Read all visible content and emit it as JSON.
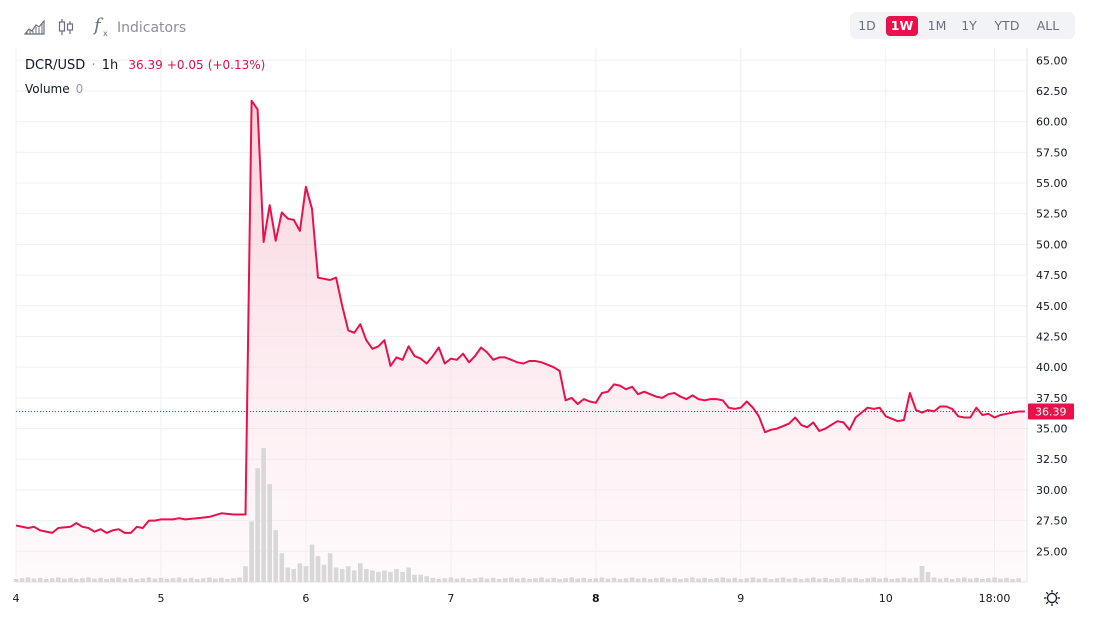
{
  "toolbar": {
    "chart_type_icon": "area-chart-icon",
    "candle_icon": "candlestick-icon",
    "fx_icon": "function-fx-icon",
    "indicators_label": "Indicators",
    "ranges": [
      "1D",
      "1W",
      "1M",
      "1Y",
      "YTD",
      "ALL"
    ],
    "active_range": "1W",
    "settings_icon": "gear-icon"
  },
  "legend": {
    "symbol": "DCR/USD",
    "interval": "1h",
    "price": "36.39",
    "change": "+0.05",
    "change_pct": "(+0.13%)",
    "volume_label": "Volume",
    "volume_value": "0"
  },
  "colors": {
    "line": "#e8114b",
    "area_top": "#f7c9d6",
    "volume": "#d8d8d8",
    "grid": "#eef0f3",
    "accent": "#e8114b"
  },
  "chart_data": {
    "type": "area",
    "title": "DCR/USD",
    "ylim": [
      22.5,
      66
    ],
    "y_ticks": [
      25.0,
      27.5,
      30.0,
      32.5,
      35.0,
      37.5,
      40.0,
      42.5,
      45.0,
      47.5,
      50.0,
      52.5,
      55.0,
      57.5,
      60.0,
      62.5,
      65.0
    ],
    "x_ticks": [
      {
        "label": "4",
        "t": 0
      },
      {
        "label": "5",
        "t": 24
      },
      {
        "label": "6",
        "t": 48
      },
      {
        "label": "7",
        "t": 72
      },
      {
        "label": "8",
        "t": 96
      },
      {
        "label": "9",
        "t": 120
      },
      {
        "label": "10",
        "t": 144
      },
      {
        "label": "18:00",
        "t": 162
      }
    ],
    "x_bold": [
      "8"
    ],
    "t_max": 167,
    "last_price": 36.39,
    "series": [
      {
        "values": [
          [
            0,
            27.1
          ],
          [
            2,
            26.9
          ],
          [
            3,
            27.0
          ],
          [
            4,
            26.7
          ],
          [
            6,
            26.5
          ],
          [
            7,
            26.9
          ],
          [
            9,
            27.0
          ],
          [
            10,
            27.3
          ],
          [
            11,
            27.0
          ],
          [
            12,
            26.9
          ],
          [
            13,
            26.6
          ],
          [
            14,
            26.8
          ],
          [
            15,
            26.5
          ],
          [
            16,
            26.7
          ],
          [
            17,
            26.8
          ],
          [
            18,
            26.5
          ],
          [
            19,
            26.5
          ],
          [
            20,
            27.0
          ],
          [
            21,
            26.9
          ],
          [
            22,
            27.5
          ],
          [
            23,
            27.5
          ],
          [
            24,
            27.6
          ],
          [
            26,
            27.6
          ],
          [
            27,
            27.7
          ],
          [
            28,
            27.6
          ],
          [
            30,
            27.7
          ],
          [
            32,
            27.8
          ],
          [
            34,
            28.1
          ],
          [
            36,
            28.0
          ],
          [
            38,
            28.0
          ],
          [
            39,
            61.7
          ],
          [
            40,
            61.0
          ],
          [
            41,
            50.2
          ],
          [
            42,
            53.2
          ],
          [
            43,
            50.3
          ],
          [
            44,
            52.6
          ],
          [
            45,
            52.1
          ],
          [
            46,
            52.0
          ],
          [
            47,
            51.1
          ],
          [
            48,
            54.7
          ],
          [
            49,
            52.9
          ],
          [
            50,
            47.3
          ],
          [
            51,
            47.2
          ],
          [
            52,
            47.1
          ],
          [
            53,
            47.3
          ],
          [
            54,
            45.0
          ],
          [
            55,
            43.0
          ],
          [
            56,
            42.8
          ],
          [
            57,
            43.5
          ],
          [
            58,
            42.2
          ],
          [
            59,
            41.5
          ],
          [
            60,
            41.7
          ],
          [
            61,
            42.2
          ],
          [
            62,
            40.1
          ],
          [
            63,
            40.8
          ],
          [
            64,
            40.6
          ],
          [
            65,
            41.7
          ],
          [
            66,
            40.9
          ],
          [
            67,
            40.7
          ],
          [
            68,
            40.3
          ],
          [
            69,
            40.9
          ],
          [
            70,
            41.6
          ],
          [
            71,
            40.3
          ],
          [
            72,
            40.7
          ],
          [
            73,
            40.6
          ],
          [
            74,
            41.1
          ],
          [
            75,
            40.4
          ],
          [
            76,
            40.9
          ],
          [
            77,
            41.6
          ],
          [
            78,
            41.2
          ],
          [
            79,
            40.6
          ],
          [
            80,
            40.8
          ],
          [
            81,
            40.8
          ],
          [
            82,
            40.6
          ],
          [
            83,
            40.4
          ],
          [
            84,
            40.3
          ],
          [
            85,
            40.5
          ],
          [
            86,
            40.5
          ],
          [
            87,
            40.4
          ],
          [
            88,
            40.2
          ],
          [
            89,
            40.0
          ],
          [
            90,
            39.7
          ],
          [
            91,
            37.3
          ],
          [
            92,
            37.5
          ],
          [
            93,
            37.0
          ],
          [
            94,
            37.4
          ],
          [
            95,
            37.2
          ],
          [
            96,
            37.1
          ],
          [
            97,
            37.9
          ],
          [
            98,
            38.0
          ],
          [
            99,
            38.6
          ],
          [
            100,
            38.5
          ],
          [
            101,
            38.2
          ],
          [
            102,
            38.4
          ],
          [
            103,
            37.8
          ],
          [
            104,
            38.0
          ],
          [
            105,
            37.8
          ],
          [
            106,
            37.6
          ],
          [
            107,
            37.5
          ],
          [
            108,
            37.8
          ],
          [
            109,
            37.9
          ],
          [
            110,
            37.6
          ],
          [
            111,
            37.4
          ],
          [
            112,
            37.7
          ],
          [
            113,
            37.4
          ],
          [
            114,
            37.3
          ],
          [
            115,
            37.4
          ],
          [
            116,
            37.4
          ],
          [
            117,
            37.3
          ],
          [
            118,
            36.7
          ],
          [
            119,
            36.6
          ],
          [
            120,
            36.7
          ],
          [
            121,
            37.2
          ],
          [
            122,
            36.7
          ],
          [
            123,
            36.0
          ],
          [
            124,
            34.7
          ],
          [
            125,
            34.9
          ],
          [
            126,
            35.0
          ],
          [
            127,
            35.2
          ],
          [
            128,
            35.4
          ],
          [
            129,
            35.9
          ],
          [
            130,
            35.3
          ],
          [
            131,
            35.1
          ],
          [
            132,
            35.5
          ],
          [
            133,
            34.8
          ],
          [
            134,
            35.0
          ],
          [
            135,
            35.3
          ],
          [
            136,
            35.6
          ],
          [
            137,
            35.5
          ],
          [
            138,
            34.9
          ],
          [
            139,
            35.9
          ],
          [
            140,
            36.3
          ],
          [
            141,
            36.7
          ],
          [
            142,
            36.6
          ],
          [
            143,
            36.7
          ],
          [
            144,
            36.0
          ],
          [
            145,
            35.8
          ],
          [
            146,
            35.6
          ],
          [
            147,
            35.7
          ],
          [
            148,
            37.9
          ],
          [
            149,
            36.5
          ],
          [
            150,
            36.3
          ],
          [
            151,
            36.5
          ],
          [
            152,
            36.4
          ],
          [
            153,
            36.8
          ],
          [
            154,
            36.8
          ],
          [
            155,
            36.6
          ],
          [
            156,
            36.0
          ],
          [
            157,
            35.9
          ],
          [
            158,
            35.9
          ],
          [
            159,
            36.7
          ],
          [
            160,
            36.1
          ],
          [
            161,
            36.2
          ],
          [
            162,
            35.9
          ],
          [
            163,
            36.1
          ],
          [
            164,
            36.2
          ],
          [
            165,
            36.3
          ],
          [
            166,
            36.39
          ]
        ]
      }
    ],
    "volume": [
      [
        38,
        1.1
      ],
      [
        39,
        4.2
      ],
      [
        40,
        7.9
      ],
      [
        41,
        9.3
      ],
      [
        42,
        6.8
      ],
      [
        43,
        3.6
      ],
      [
        44,
        2.0
      ],
      [
        45,
        1.0
      ],
      [
        46,
        0.9
      ],
      [
        47,
        1.3
      ],
      [
        48,
        1.1
      ],
      [
        49,
        2.6
      ],
      [
        50,
        1.8
      ],
      [
        51,
        1.2
      ],
      [
        52,
        2.0
      ],
      [
        53,
        1.0
      ],
      [
        54,
        0.9
      ],
      [
        55,
        1.1
      ],
      [
        56,
        0.8
      ],
      [
        57,
        1.3
      ],
      [
        58,
        0.9
      ],
      [
        59,
        0.8
      ],
      [
        60,
        0.7
      ],
      [
        61,
        0.8
      ],
      [
        62,
        0.7
      ],
      [
        63,
        0.9
      ],
      [
        64,
        0.7
      ],
      [
        65,
        1.0
      ],
      [
        66,
        0.5
      ],
      [
        67,
        0.5
      ],
      [
        68,
        0.4
      ]
    ]
  }
}
